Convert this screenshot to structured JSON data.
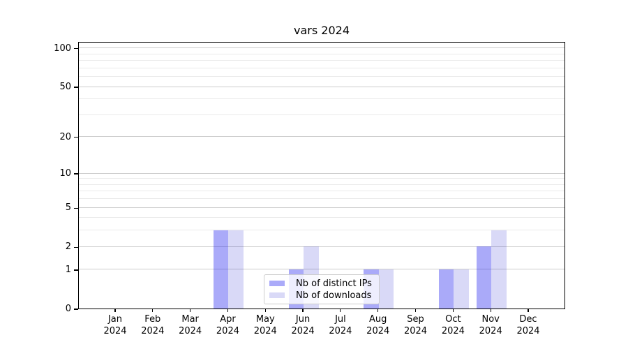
{
  "chart_data": {
    "type": "bar",
    "title": "vars 2024",
    "categories": [
      {
        "month": "Jan",
        "year": "2024"
      },
      {
        "month": "Feb",
        "year": "2024"
      },
      {
        "month": "Mar",
        "year": "2024"
      },
      {
        "month": "Apr",
        "year": "2024"
      },
      {
        "month": "May",
        "year": "2024"
      },
      {
        "month": "Jun",
        "year": "2024"
      },
      {
        "month": "Jul",
        "year": "2024"
      },
      {
        "month": "Aug",
        "year": "2024"
      },
      {
        "month": "Sep",
        "year": "2024"
      },
      {
        "month": "Oct",
        "year": "2024"
      },
      {
        "month": "Nov",
        "year": "2024"
      },
      {
        "month": "Dec",
        "year": "2024"
      }
    ],
    "series": [
      {
        "name": "Nb of distinct IPs",
        "color": "#0000ee55",
        "color_solid": "#aaaaf7",
        "values": [
          0,
          0,
          0,
          3,
          0,
          1,
          0,
          1,
          0,
          1,
          2,
          0
        ]
      },
      {
        "name": "Nb of downloads",
        "color": "#0000c826",
        "color_solid": "#d9d9f7",
        "values": [
          0,
          0,
          0,
          3,
          0,
          2,
          0,
          1,
          0,
          1,
          3,
          0
        ]
      }
    ],
    "xlabel": "",
    "ylabel": "",
    "yscale": "log1p",
    "ylim": [
      0,
      113
    ],
    "yticks": [
      0,
      1,
      2,
      5,
      10,
      20,
      50,
      100
    ],
    "minor_gridlines": [
      3,
      4,
      6,
      7,
      8,
      9,
      30,
      40,
      60,
      70,
      80,
      90
    ],
    "grid": "on",
    "legend_position": "lower center inside plot",
    "colors": {
      "major_grid": "#cccccc",
      "minor_grid": "#eaeaea",
      "axis": "#000000",
      "text": "#000000",
      "legend_border": "#cccccc"
    }
  }
}
